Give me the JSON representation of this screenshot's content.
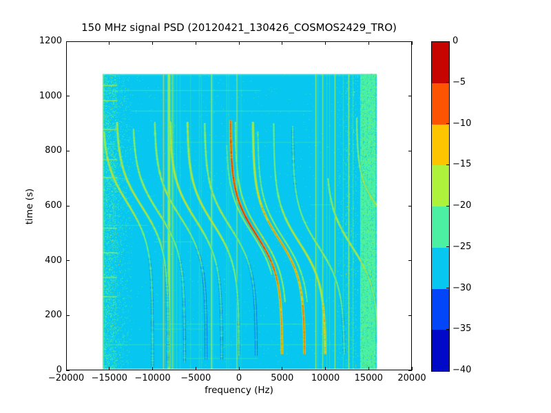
{
  "chart_data": {
    "type": "heatmap",
    "title": "150 MHz signal PSD (20120421_130426_COSMOS2429_TRO)",
    "xlabel": "frequency (Hz)",
    "ylabel": "time (s)",
    "xlim": [
      -20000,
      20000
    ],
    "ylim": [
      0,
      1200
    ],
    "x_ticks": [
      {
        "value": -20000,
        "label": "−20000"
      },
      {
        "value": -15000,
        "label": "−15000"
      },
      {
        "value": -10000,
        "label": "−10000"
      },
      {
        "value": -5000,
        "label": "−5000"
      },
      {
        "value": 0,
        "label": "0"
      },
      {
        "value": 5000,
        "label": "5000"
      },
      {
        "value": 10000,
        "label": "10000"
      },
      {
        "value": 15000,
        "label": "15000"
      },
      {
        "value": 20000,
        "label": "20000"
      }
    ],
    "y_ticks": [
      {
        "value": 0,
        "label": "0"
      },
      {
        "value": 200,
        "label": "200"
      },
      {
        "value": 400,
        "label": "400"
      },
      {
        "value": 600,
        "label": "600"
      },
      {
        "value": 800,
        "label": "800"
      },
      {
        "value": 1000,
        "label": "1000"
      },
      {
        "value": 1200,
        "label": "1200"
      }
    ],
    "colorbar": {
      "range_db": [
        0,
        -40
      ],
      "ticks": [
        {
          "value": 0,
          "label": "0"
        },
        {
          "value": -5,
          "label": "−5"
        },
        {
          "value": -10,
          "label": "−10"
        },
        {
          "value": -15,
          "label": "−15"
        },
        {
          "value": -20,
          "label": "−20"
        },
        {
          "value": -25,
          "label": "−25"
        },
        {
          "value": -30,
          "label": "−30"
        },
        {
          "value": -35,
          "label": "−35"
        },
        {
          "value": -40,
          "label": "−40"
        }
      ]
    },
    "palette": {
      "thresholds": [
        -5,
        -10,
        -15,
        -20,
        -25,
        -30,
        -35
      ],
      "colors": [
        "#c60400",
        "#fc5400",
        "#fdc500",
        "#aef23c",
        "#4bf0a2",
        "#07c6f0",
        "#0345f8",
        "#0009c8"
      ]
    },
    "background_db": -27,
    "extent": {
      "f": [
        -15780,
        15940
      ],
      "t": [
        4,
        1081
      ]
    },
    "traces": [
      {
        "c": -12900,
        "t0": 610,
        "A": 2900,
        "tau": 150,
        "level": -14,
        "t_range": [
          12,
          870
        ],
        "asym": 2.5
      },
      {
        "c": -11200,
        "t0": 595,
        "A": 3000,
        "tau": 150,
        "level": -13.5,
        "t_range": [
          12,
          905
        ],
        "asym": 2.5
      },
      {
        "c": -9300,
        "t0": 575,
        "A": 3000,
        "tau": 150,
        "level": -15,
        "t_range": [
          30,
          880
        ],
        "asym": 2
      },
      {
        "c": -6800,
        "t0": 560,
        "A": 3000,
        "tau": 150,
        "level": -15.5,
        "t_range": [
          40,
          905
        ],
        "asym": 3
      },
      {
        "c": -5000,
        "t0": 548,
        "A": 3000,
        "tau": 150,
        "level": -13.5,
        "t_range": [
          40,
          905
        ],
        "asym": 3.5
      },
      {
        "c": -3000,
        "t0": 535,
        "A": 3000,
        "tau": 150,
        "level": -13,
        "t_range": [
          55,
          905
        ],
        "asym": 2.5
      },
      {
        "c": -1000,
        "t0": 522,
        "A": 3000,
        "tau": 150,
        "level": -15.5,
        "t_range": [
          55,
          900
        ],
        "asym": 3
      },
      {
        "c": 2000,
        "t0": 495,
        "A": 3000,
        "tau": 150,
        "level": -2.8,
        "t_range": [
          60,
          912
        ],
        "asym": 2
      },
      {
        "c": 4600,
        "t0": 480,
        "A": 3000,
        "tau": 150,
        "level": -8,
        "t_range": [
          60,
          905
        ],
        "asym": -1.5,
        "boost": true
      },
      {
        "c": 7000,
        "t0": 465,
        "A": 3000,
        "tau": 150,
        "level": -12.5,
        "t_range": [
          60,
          900
        ],
        "asym": -2,
        "boost": true
      },
      {
        "c": 9200,
        "t0": 452,
        "A": 3000,
        "tau": 150,
        "level": -16,
        "t_range": [
          60,
          890
        ],
        "asym": 0
      },
      {
        "c": 13100,
        "t0": 450,
        "A": 3000,
        "tau": 150,
        "level": -14,
        "t_range": [
          100,
          700
        ],
        "asym": 0
      },
      {
        "c": 17000,
        "t0": 560,
        "A": 3400,
        "tau": 130,
        "level": -13.5,
        "t_range": [
          380,
          920
        ],
        "asym": 0
      },
      {
        "c": 2550,
        "t0": 495,
        "A": 3000,
        "tau": 150,
        "level": -14.5,
        "t_range": [
          250,
          905
        ],
        "asym": 0,
        "thin": true
      },
      {
        "c": 5150,
        "t0": 480,
        "A": 3000,
        "tau": 150,
        "level": -16,
        "t_range": [
          250,
          870
        ],
        "asym": 0,
        "thin": true
      },
      {
        "c": 1500,
        "t0": 500,
        "A": 3000,
        "tau": 150,
        "level": -16,
        "t_range": [
          350,
          820
        ],
        "asym": 0,
        "thin": true
      }
    ],
    "vertical_lines": [
      {
        "f": -8730,
        "level": -15,
        "width": 1.5,
        "alpha": 0.9
      },
      {
        "f": -8100,
        "level": -19,
        "width": 4,
        "alpha": 0.8
      },
      {
        "f": -7700,
        "level": -20,
        "width": 2,
        "alpha": 0.6
      },
      {
        "f": -7540,
        "level": -23,
        "width": 1,
        "alpha": 0.55
      },
      {
        "f": -7222,
        "level": -23,
        "width": 1,
        "alpha": 0.5
      },
      {
        "f": -6825,
        "level": -24,
        "width": 1,
        "alpha": 0.45
      },
      {
        "f": -5600,
        "level": -23,
        "width": 1,
        "alpha": 0.45
      },
      {
        "f": -4603,
        "level": -23,
        "width": 1,
        "alpha": 0.5
      },
      {
        "f": -4365,
        "level": -24,
        "width": 1,
        "alpha": 0.4
      },
      {
        "f": -3175,
        "level": -19,
        "width": 1.5,
        "alpha": 0.85
      },
      {
        "f": -3016,
        "level": -23,
        "width": 1,
        "alpha": 0.4
      },
      {
        "f": -1429,
        "level": -22,
        "width": 1,
        "alpha": 0.5
      },
      {
        "f": -1190,
        "level": -23,
        "width": 1,
        "alpha": 0.45
      },
      {
        "f": -238,
        "level": -20,
        "width": 1.5,
        "alpha": 0.7
      },
      {
        "f": 238,
        "level": -23,
        "width": 1,
        "alpha": 0.4
      },
      {
        "f": 8889,
        "level": -19,
        "width": 1.5,
        "alpha": 0.8
      },
      {
        "f": 9127,
        "level": -22,
        "width": 1,
        "alpha": 0.5
      },
      {
        "f": 9683,
        "level": -20,
        "width": 1.5,
        "alpha": 0.7
      },
      {
        "f": 10159,
        "level": -23,
        "width": 1,
        "alpha": 0.45
      },
      {
        "f": 10476,
        "level": -22,
        "width": 1,
        "alpha": 0.5
      },
      {
        "f": 11111,
        "level": -19,
        "width": 1.5,
        "alpha": 0.8
      },
      {
        "f": 12063,
        "level": -21,
        "width": 1,
        "alpha": 0.6
      },
      {
        "f": 12700,
        "level": -20,
        "width": 1.5,
        "alpha": 0.8
      },
      {
        "f": 13175,
        "level": -21,
        "width": 1,
        "alpha": 0.7
      }
    ],
    "horizontal_lines": [
      {
        "t": 1078,
        "f": [
          -15780,
          15940
        ],
        "level": -21,
        "alpha": 0.55
      },
      {
        "t": 1022,
        "f": [
          -15780,
          2500
        ],
        "level": -21,
        "alpha": 0.6
      },
      {
        "t": 947,
        "f": [
          -12500,
          8500
        ],
        "level": -21,
        "alpha": 0.55
      },
      {
        "t": 833,
        "f": [
          -7800,
          9500
        ],
        "level": -22,
        "alpha": 0.45
      },
      {
        "t": 700,
        "f": [
          -15780,
          -13000
        ],
        "level": -22,
        "alpha": 0.5
      },
      {
        "t": 605,
        "f": [
          8200,
          11000
        ],
        "level": -22,
        "alpha": 0.45
      },
      {
        "t": 530,
        "f": [
          -15780,
          -10500
        ],
        "level": -22,
        "alpha": 0.45
      },
      {
        "t": 470,
        "f": [
          -9800,
          -5200
        ],
        "level": -22,
        "alpha": 0.5
      },
      {
        "t": 170,
        "f": [
          -9800,
          8200
        ],
        "level": -21,
        "alpha": 0.6
      },
      {
        "t": 152,
        "f": [
          -9800,
          -3200
        ],
        "level": -22,
        "alpha": 0.45
      },
      {
        "t": 95,
        "f": [
          -15780,
          12500
        ],
        "level": -21,
        "alpha": 0.5
      },
      {
        "t": 45,
        "f": [
          -6500,
          2200
        ],
        "level": -22,
        "alpha": 0.45
      }
    ],
    "left_band_rows": {
      "times": [
        270,
        340,
        430,
        520,
        705,
        770,
        880,
        985,
        1040
      ],
      "f": [
        -15780,
        -14100
      ]
    },
    "noise": {
      "seed": 1234,
      "sparse_density": 0.006,
      "left_edge_line": {
        "f": [
          -15780,
          -15620
        ]
      },
      "left_band": {
        "f": [
          -15780,
          -14200
        ],
        "density": 0.38
      },
      "left_fade": {
        "f": [
          -14200,
          -12300
        ],
        "density_start": 0.16,
        "density_end": 0.02
      },
      "right_sparse": {
        "f": [
          11400,
          12400
        ],
        "density": 0.035
      },
      "right_stripes": {
        "f": [
          12400,
          14000
        ],
        "col_prob": 0.45,
        "col_density": [
          0.05,
          0.3
        ]
      },
      "solid_band": {
        "f": [
          14020,
          15810
        ],
        "speckle_cyan": 0.1,
        "speckle_gy": 0.05
      },
      "solid_band_cyan_stripes": [
        14400,
        14900,
        15300
      ],
      "edge_band": {
        "f": [
          15810,
          15940
        ],
        "density": 0.5
      }
    }
  }
}
